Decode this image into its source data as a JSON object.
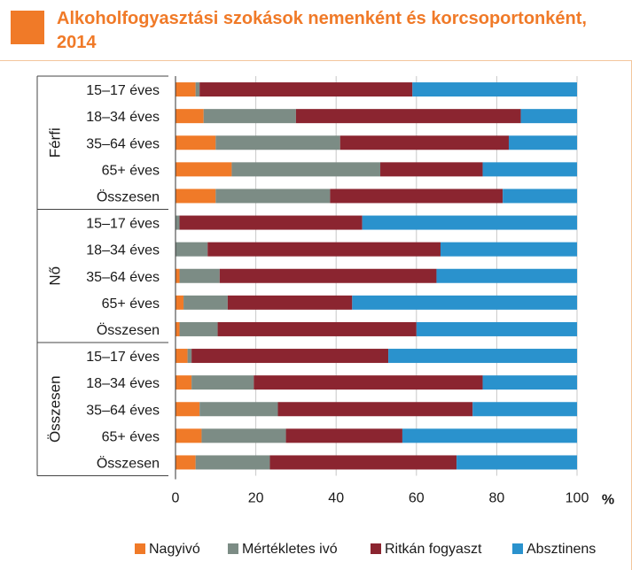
{
  "header": {
    "title": "Alkoholfogyasztási szokások nemenként és korcsoportonként, 2014"
  },
  "chart_data": {
    "type": "bar",
    "orientation": "horizontal",
    "stacked": true,
    "xlim": [
      0,
      100
    ],
    "xticks": [
      0,
      20,
      40,
      60,
      80,
      100
    ],
    "xlabel": "%",
    "groups": [
      {
        "name": "Férfi",
        "categories": [
          "15–17 éves",
          "18–34 éves",
          "35–64 éves",
          "65+ éves",
          "Összesen"
        ]
      },
      {
        "name": "Nő",
        "categories": [
          "15–17 éves",
          "18–34 éves",
          "35–64 éves",
          "65+ éves",
          "Összesen"
        ]
      },
      {
        "name": "Összesen",
        "categories": [
          "15–17 éves",
          "18–34 éves",
          "35–64 éves",
          "65+ éves",
          "Összesen"
        ]
      }
    ],
    "series": [
      {
        "name": "Nagyivó",
        "color": "#f07a28",
        "values": [
          5,
          7,
          10,
          14,
          10,
          0,
          0,
          1,
          2,
          1,
          3,
          4,
          6,
          6.5,
          5
        ]
      },
      {
        "name": "Mértékletes ivó",
        "color": "#7c8c85",
        "values": [
          1,
          23,
          31,
          37,
          28.5,
          1,
          8,
          10,
          11,
          9.5,
          1,
          15.5,
          19.5,
          21,
          18.5
        ]
      },
      {
        "name": "Ritkán fogyaszt",
        "color": "#8b2530",
        "values": [
          53,
          56,
          42,
          25.5,
          43,
          45.5,
          58,
          54,
          31,
          49.5,
          49,
          57,
          48.5,
          29,
          46.5
        ]
      },
      {
        "name": "Absztinens",
        "color": "#2a92cd",
        "values": [
          41,
          14,
          17,
          23.5,
          18.5,
          53.5,
          34,
          35,
          56,
          40,
          47,
          23.5,
          26,
          43.5,
          30
        ]
      }
    ]
  }
}
